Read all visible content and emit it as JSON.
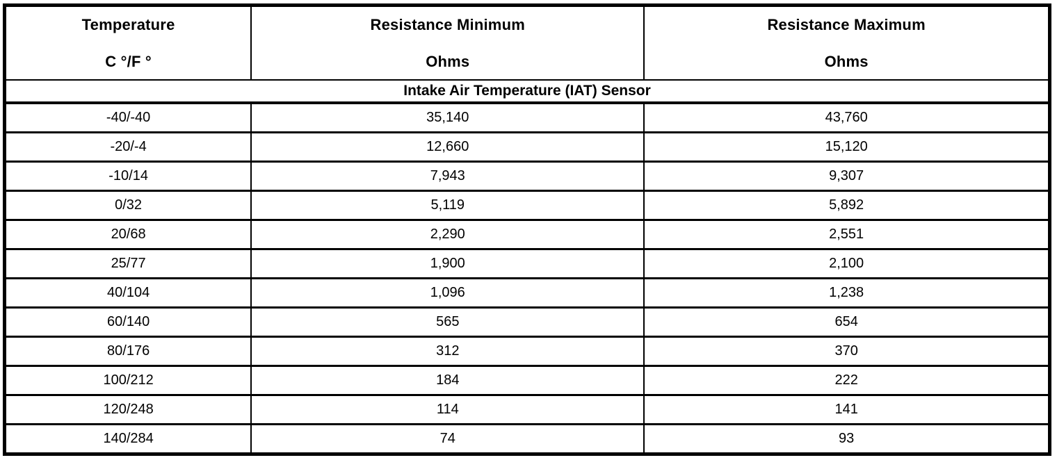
{
  "table": {
    "columns": [
      {
        "line1": "Temperature",
        "line2": "C °/F °"
      },
      {
        "line1": "Resistance Minimum",
        "line2": "Ohms"
      },
      {
        "line1": "Resistance Maximum",
        "line2": "Ohms"
      }
    ],
    "section_title": "Intake Air Temperature (IAT) Sensor",
    "rows": [
      {
        "temp": "-40/-40",
        "min": "35,140",
        "max": "43,760"
      },
      {
        "temp": "-20/-4",
        "min": "12,660",
        "max": "15,120"
      },
      {
        "temp": "-10/14",
        "min": "7,943",
        "max": "9,307"
      },
      {
        "temp": "0/32",
        "min": "5,119",
        "max": "5,892"
      },
      {
        "temp": "20/68",
        "min": "2,290",
        "max": "2,551"
      },
      {
        "temp": "25/77",
        "min": "1,900",
        "max": "2,100"
      },
      {
        "temp": "40/104",
        "min": "1,096",
        "max": "1,238"
      },
      {
        "temp": "60/140",
        "min": "565",
        "max": "654"
      },
      {
        "temp": "80/176",
        "min": "312",
        "max": "370"
      },
      {
        "temp": "100/212",
        "min": "184",
        "max": "222"
      },
      {
        "temp": "120/248",
        "min": "114",
        "max": "141"
      },
      {
        "temp": "140/284",
        "min": "74",
        "max": "93"
      }
    ],
    "colors": {
      "border": "#000000",
      "background": "#ffffff",
      "text": "#000000"
    }
  }
}
